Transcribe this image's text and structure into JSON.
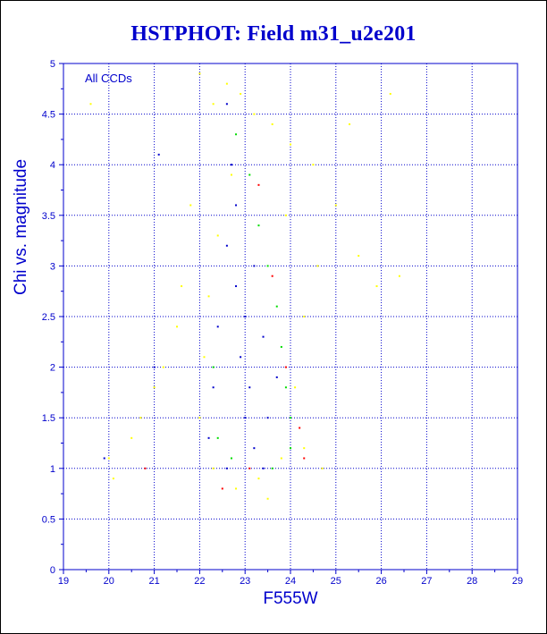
{
  "chart_data": {
    "type": "scatter",
    "title": "HSTPHOT: Field m31_u2e201",
    "xlabel": "F555W",
    "ylabel": "Chi vs. magnitude",
    "annotation": "All CCDs",
    "xlim": [
      19,
      29
    ],
    "ylim": [
      0,
      5
    ],
    "x_ticks": [
      "19",
      "20",
      "21",
      "22",
      "23",
      "24",
      "25",
      "26",
      "27",
      "28",
      "29"
    ],
    "y_ticks": [
      "0",
      "0.5",
      "1",
      "1.5",
      "2",
      "2.5",
      "3",
      "3.5",
      "4",
      "4.5",
      "5"
    ],
    "grid": true,
    "series": [
      {
        "color": "#ffff00",
        "values": [
          [
            22.0,
            4.9
          ],
          [
            22.3,
            4.6
          ],
          [
            22.6,
            4.8
          ],
          [
            22.9,
            4.7
          ],
          [
            23.2,
            4.5
          ],
          [
            23.6,
            4.4
          ],
          [
            24.0,
            4.2
          ],
          [
            24.5,
            4.0
          ],
          [
            25.0,
            3.6
          ],
          [
            25.5,
            3.1
          ],
          [
            25.9,
            2.8
          ],
          [
            26.4,
            2.9
          ],
          [
            26.2,
            4.7
          ],
          [
            25.3,
            4.4
          ],
          [
            21.8,
            3.6
          ],
          [
            21.6,
            2.8
          ],
          [
            21.5,
            2.4
          ],
          [
            21.2,
            2.0
          ],
          [
            21.0,
            1.8
          ],
          [
            20.7,
            1.5
          ],
          [
            20.5,
            1.3
          ],
          [
            20.1,
            0.9
          ],
          [
            20.0,
            1.1
          ],
          [
            19.6,
            4.6
          ],
          [
            22.3,
            1.0
          ],
          [
            22.8,
            0.8
          ],
          [
            23.3,
            0.9
          ],
          [
            23.8,
            1.1
          ],
          [
            24.3,
            1.2
          ],
          [
            24.7,
            1.0
          ],
          [
            24.1,
            1.8
          ],
          [
            24.3,
            2.5
          ],
          [
            24.6,
            3.0
          ],
          [
            23.9,
            3.5
          ],
          [
            22.7,
            3.9
          ],
          [
            22.4,
            3.3
          ],
          [
            22.2,
            2.7
          ],
          [
            22.1,
            2.1
          ],
          [
            22.0,
            1.5
          ],
          [
            23.5,
            0.7
          ]
        ]
      },
      {
        "color": "#00dd00",
        "values": [
          [
            22.8,
            4.3
          ],
          [
            23.1,
            3.9
          ],
          [
            23.3,
            3.4
          ],
          [
            23.5,
            3.0
          ],
          [
            23.7,
            2.6
          ],
          [
            23.8,
            2.2
          ],
          [
            23.9,
            1.8
          ],
          [
            24.0,
            1.5
          ],
          [
            24.0,
            1.2
          ],
          [
            23.6,
            1.0
          ],
          [
            22.7,
            1.1
          ],
          [
            22.4,
            1.3
          ],
          [
            22.3,
            2.0
          ]
        ]
      },
      {
        "color": "#ff0000",
        "values": [
          [
            23.3,
            3.8
          ],
          [
            23.6,
            2.9
          ],
          [
            23.9,
            2.0
          ],
          [
            24.2,
            1.4
          ],
          [
            24.3,
            1.1
          ],
          [
            23.1,
            1.0
          ],
          [
            22.5,
            0.8
          ],
          [
            20.8,
            1.0
          ]
        ]
      },
      {
        "color": "#0000cc",
        "values": [
          [
            22.6,
            4.6
          ],
          [
            22.7,
            4.0
          ],
          [
            22.8,
            3.6
          ],
          [
            22.6,
            3.2
          ],
          [
            22.8,
            2.8
          ],
          [
            23.0,
            2.5
          ],
          [
            22.9,
            2.1
          ],
          [
            23.1,
            1.8
          ],
          [
            23.0,
            1.5
          ],
          [
            23.2,
            1.2
          ],
          [
            22.6,
            1.0
          ],
          [
            23.4,
            1.0
          ],
          [
            23.5,
            1.5
          ],
          [
            23.4,
            2.3
          ],
          [
            23.2,
            3.0
          ],
          [
            22.4,
            2.4
          ],
          [
            22.3,
            1.8
          ],
          [
            22.2,
            1.3
          ],
          [
            21.0,
            2.0
          ],
          [
            19.9,
            1.1
          ],
          [
            21.1,
            4.1
          ],
          [
            23.7,
            1.9
          ]
        ]
      }
    ]
  }
}
